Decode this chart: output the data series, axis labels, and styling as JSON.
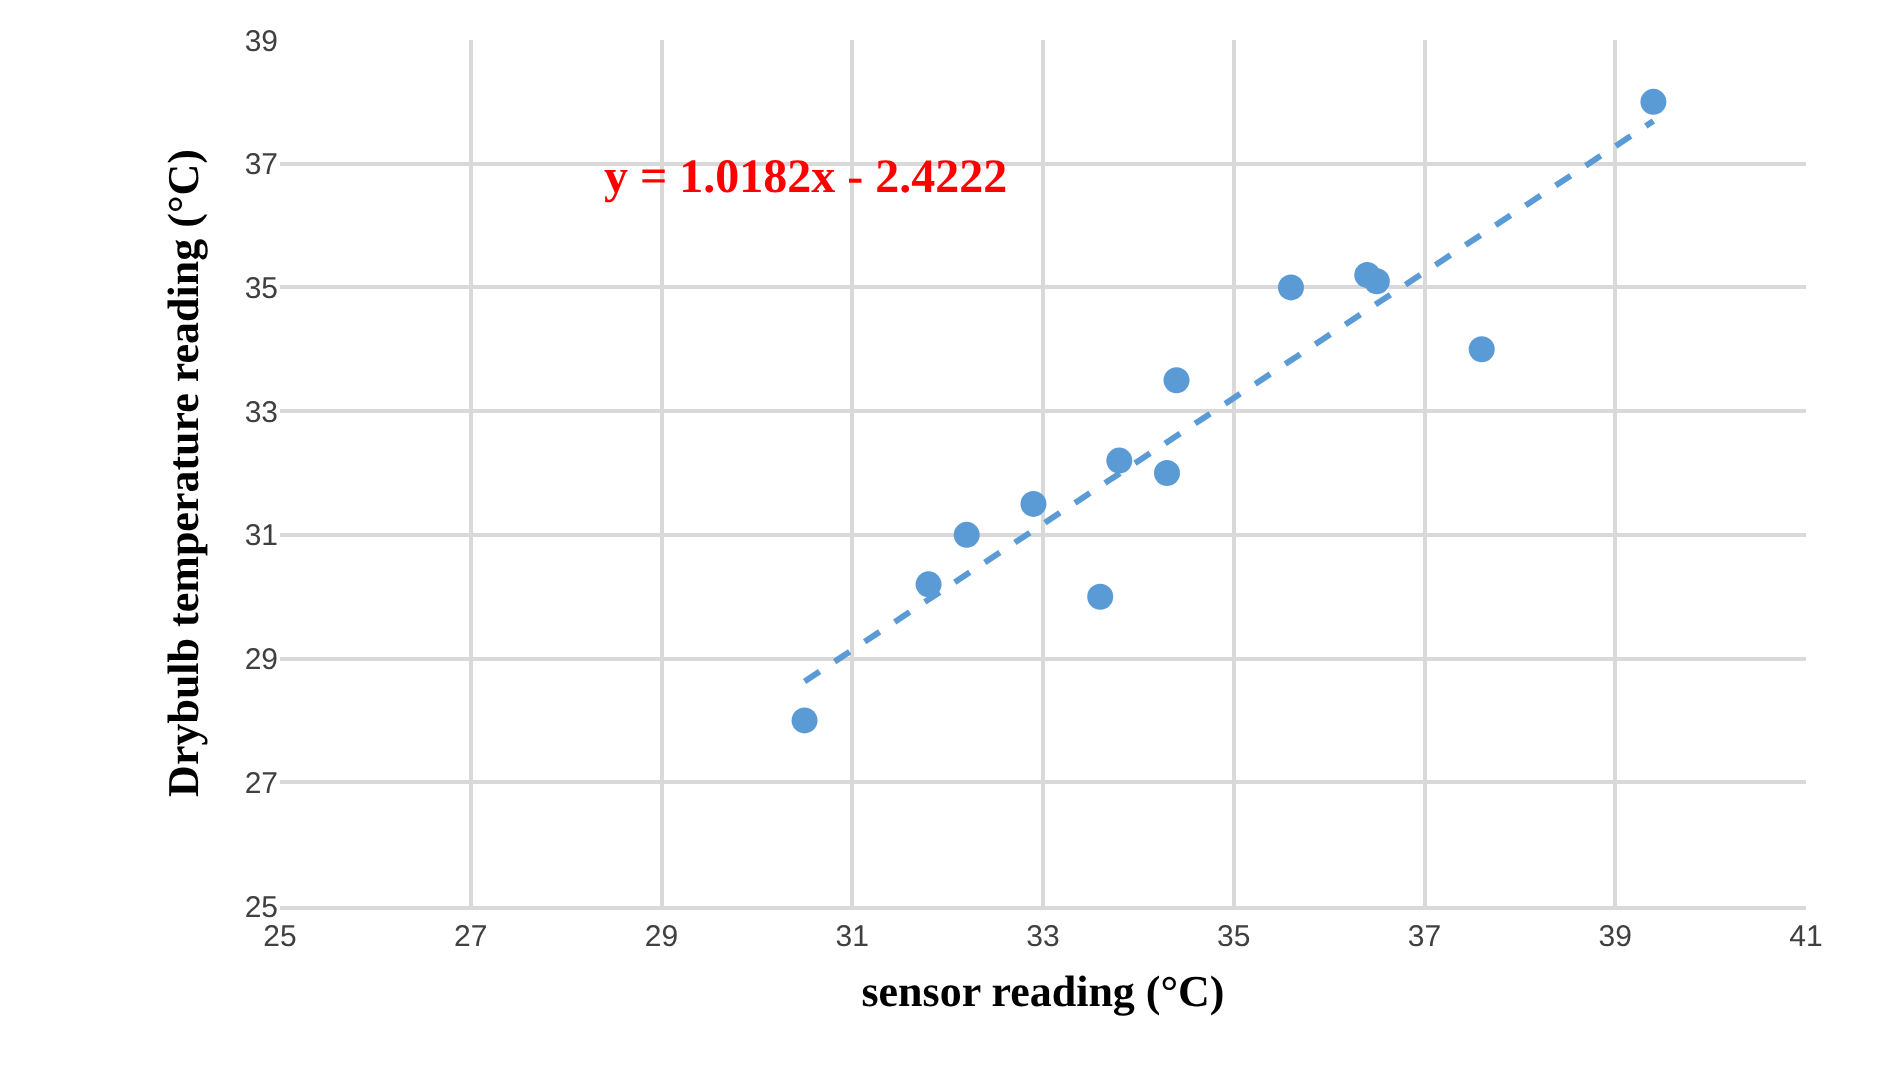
{
  "chart_data": {
    "type": "scatter",
    "xlabel": "sensor reading (°C)",
    "ylabel": "Drybulb temperature reading (°C)",
    "annotations": [
      "y = 1.0182x - 2.4222"
    ],
    "series": [
      {
        "color": "#5b9bd5",
        "x": [
          30.5,
          31.8,
          32.2,
          32.9,
          33.6,
          33.8,
          34.3,
          34.4,
          35.6,
          36.4,
          36.5,
          37.6,
          39.4
        ],
        "values": [
          28,
          30.2,
          31,
          31.5,
          30,
          32.2,
          32,
          33.5,
          35,
          35.2,
          35.1,
          34,
          38
        ],
        "marker": "circle"
      },
      {
        "type": "line",
        "color": "#5b9bd5",
        "x": [
          30.5,
          39.4
        ],
        "values": [
          28.63,
          37.69
        ],
        "line_style": "dashed",
        "marker": "none"
      }
    ],
    "xlim": [
      25,
      41
    ],
    "xticks": [
      25,
      27,
      29,
      31,
      33,
      35,
      37,
      39,
      41
    ],
    "ylim": [
      25,
      39
    ],
    "yticks": [
      25,
      27,
      29,
      31,
      33,
      35,
      37,
      39
    ],
    "grid": true
  }
}
